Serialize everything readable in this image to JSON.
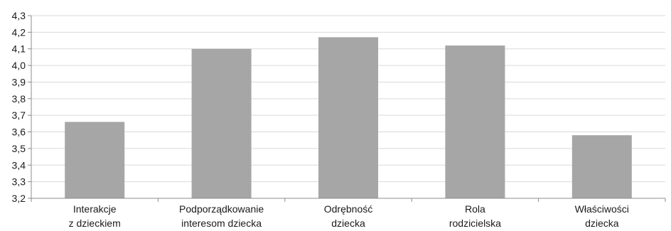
{
  "chart_data": {
    "type": "bar",
    "title": "",
    "xlabel": "",
    "ylabel": "",
    "ylim": [
      3.2,
      4.3
    ],
    "y_ticks": [
      "3,2",
      "3,3",
      "3,4",
      "3,5",
      "3,6",
      "3,7",
      "3,8",
      "3,9",
      "4,0",
      "4,1",
      "4,2",
      "4,3"
    ],
    "y_tick_values": [
      3.2,
      3.3,
      3.4,
      3.5,
      3.6,
      3.7,
      3.8,
      3.9,
      4.0,
      4.1,
      4.2,
      4.3
    ],
    "categories": [
      [
        "Interakcje",
        "z dzieckiem"
      ],
      [
        "Podporządkowanie",
        "interesom dziecka"
      ],
      [
        "Odrębność",
        "dziecka"
      ],
      [
        "Rola",
        "rodzicielska"
      ],
      [
        "Właściwości",
        "dziecka"
      ]
    ],
    "values": [
      3.66,
      4.1,
      4.17,
      4.12,
      3.58
    ],
    "bar_color": "#a6a6a6",
    "grid": true,
    "grid_color": "#d9d9d9",
    "axis_color": "#8c8c8c"
  }
}
